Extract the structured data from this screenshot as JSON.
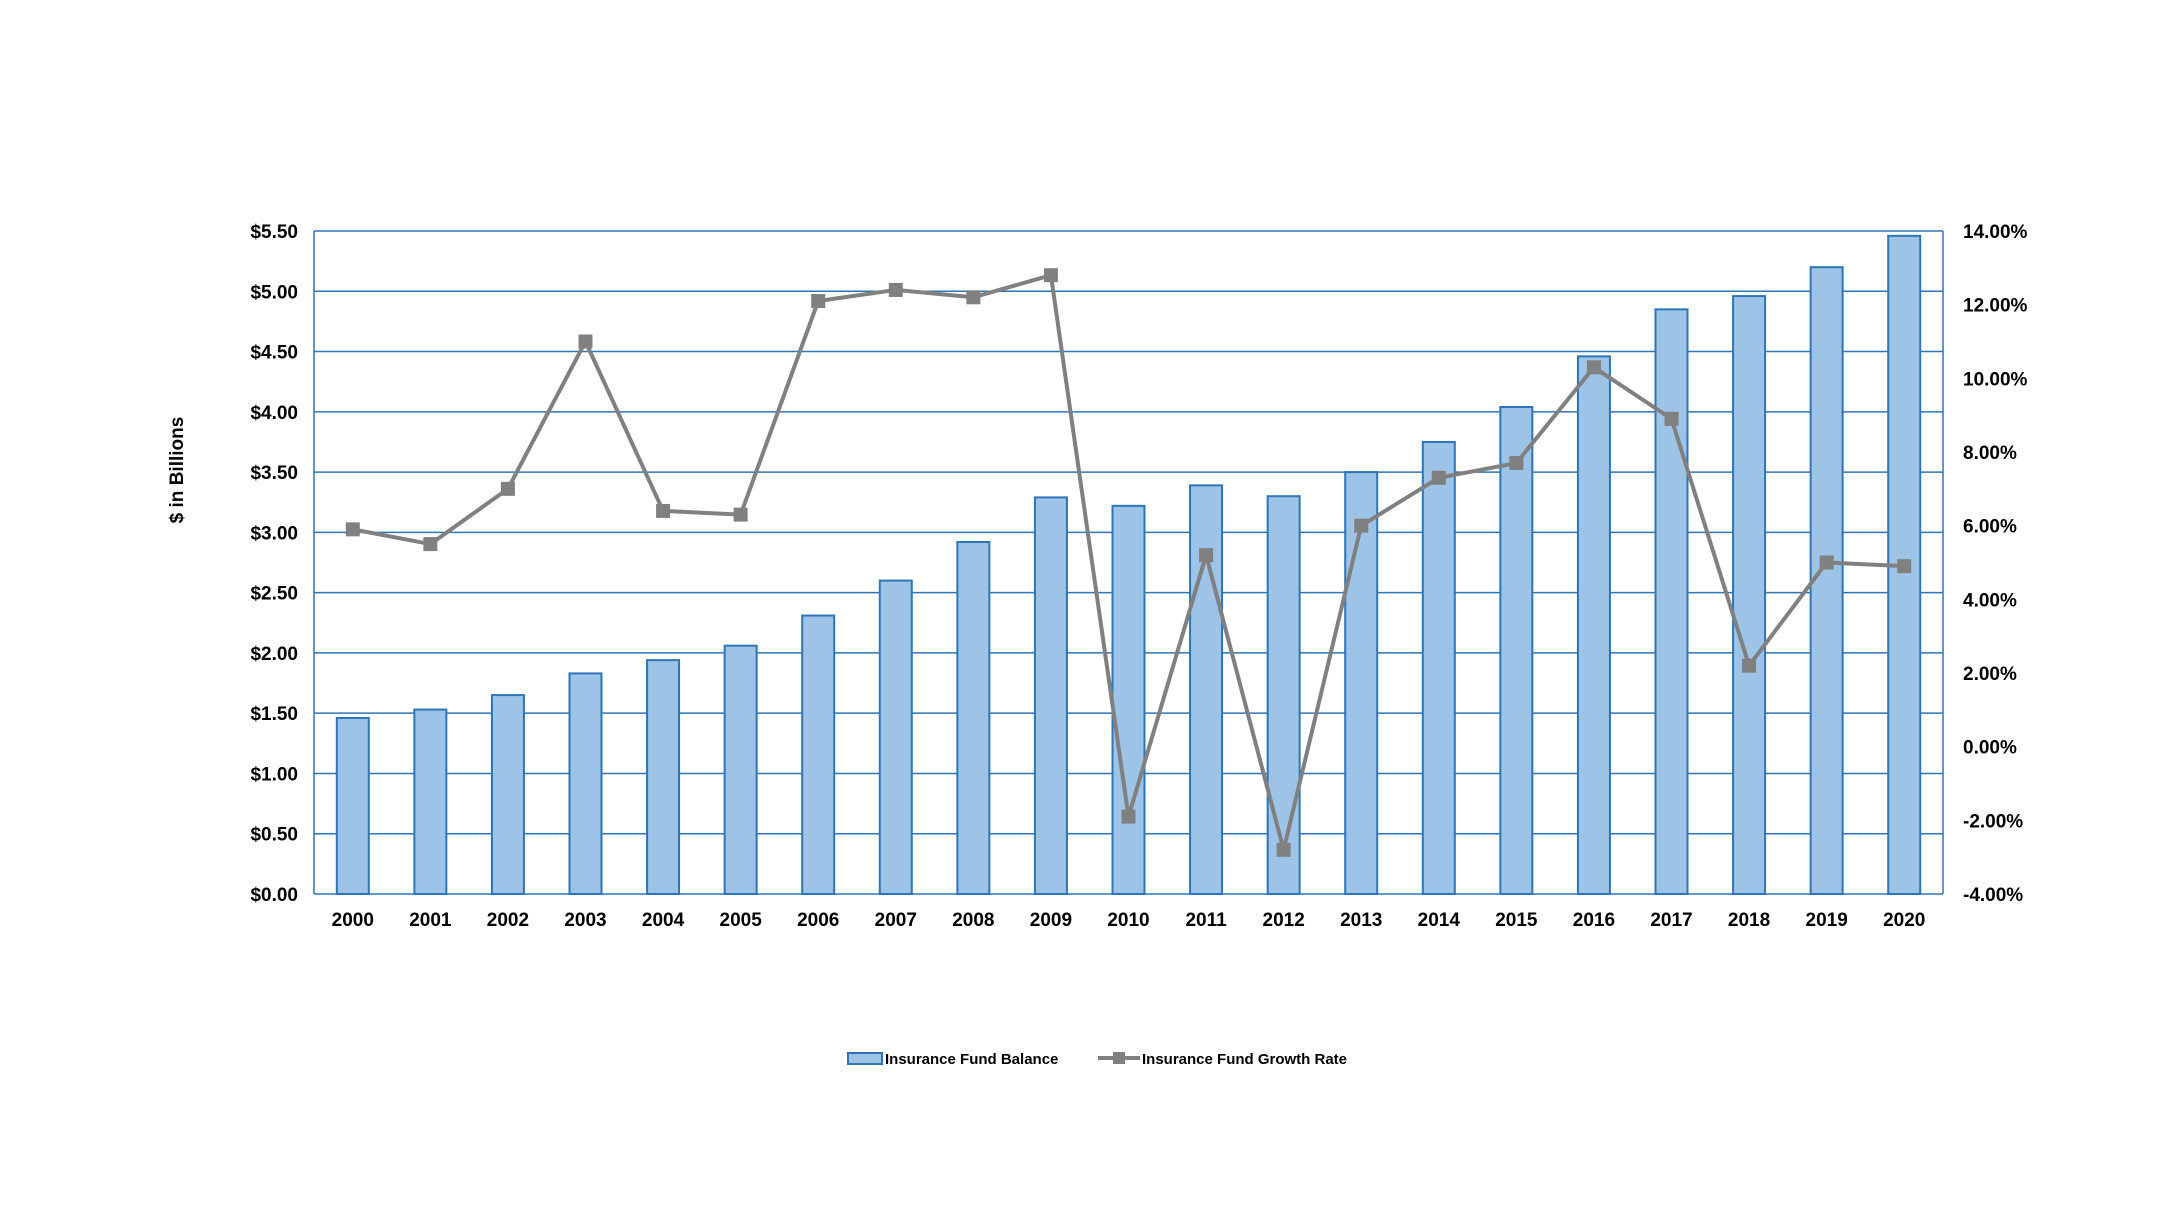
{
  "chart_data": {
    "type": "bar",
    "title": "",
    "xlabel": "",
    "ylabel": "$ in Billions",
    "y2label": "",
    "categories": [
      "2000",
      "2001",
      "2002",
      "2003",
      "2004",
      "2005",
      "2006",
      "2007",
      "2008",
      "2009",
      "2010",
      "2011",
      "2012",
      "2013",
      "2014",
      "2015",
      "2016",
      "2017",
      "2018",
      "2019",
      "2020"
    ],
    "ylim": [
      0,
      5.5
    ],
    "y2lim": [
      -4,
      14
    ],
    "y_ticks": [
      "$0.00",
      "$0.50",
      "$1.00",
      "$1.50",
      "$2.00",
      "$2.50",
      "$3.00",
      "$3.50",
      "$4.00",
      "$4.50",
      "$5.00",
      "$5.50"
    ],
    "y2_ticks": [
      "-4.00%",
      "-2.00%",
      "0.00%",
      "2.00%",
      "4.00%",
      "6.00%",
      "8.00%",
      "10.00%",
      "12.00%",
      "14.00%"
    ],
    "grid": true,
    "legend_position": "bottom",
    "series": [
      {
        "name": "Insurance Fund Balance",
        "type": "bar",
        "axis": "left",
        "color": "#9dc3e6",
        "edge_color": "#2e75b6",
        "values": [
          1.46,
          1.53,
          1.65,
          1.83,
          1.94,
          2.06,
          2.31,
          2.6,
          2.92,
          3.29,
          3.22,
          3.39,
          3.3,
          3.5,
          3.75,
          4.04,
          4.46,
          4.85,
          4.96,
          5.2,
          5.46
        ]
      },
      {
        "name": "Insurance Fund Growth Rate",
        "type": "line",
        "axis": "right",
        "color": "#808080",
        "values": [
          5.9,
          5.5,
          7.0,
          11.0,
          6.4,
          6.3,
          12.1,
          12.4,
          12.2,
          12.8,
          -1.9,
          5.2,
          -2.8,
          6.0,
          7.3,
          7.7,
          10.3,
          8.9,
          2.2,
          5.0,
          4.9
        ]
      }
    ]
  }
}
